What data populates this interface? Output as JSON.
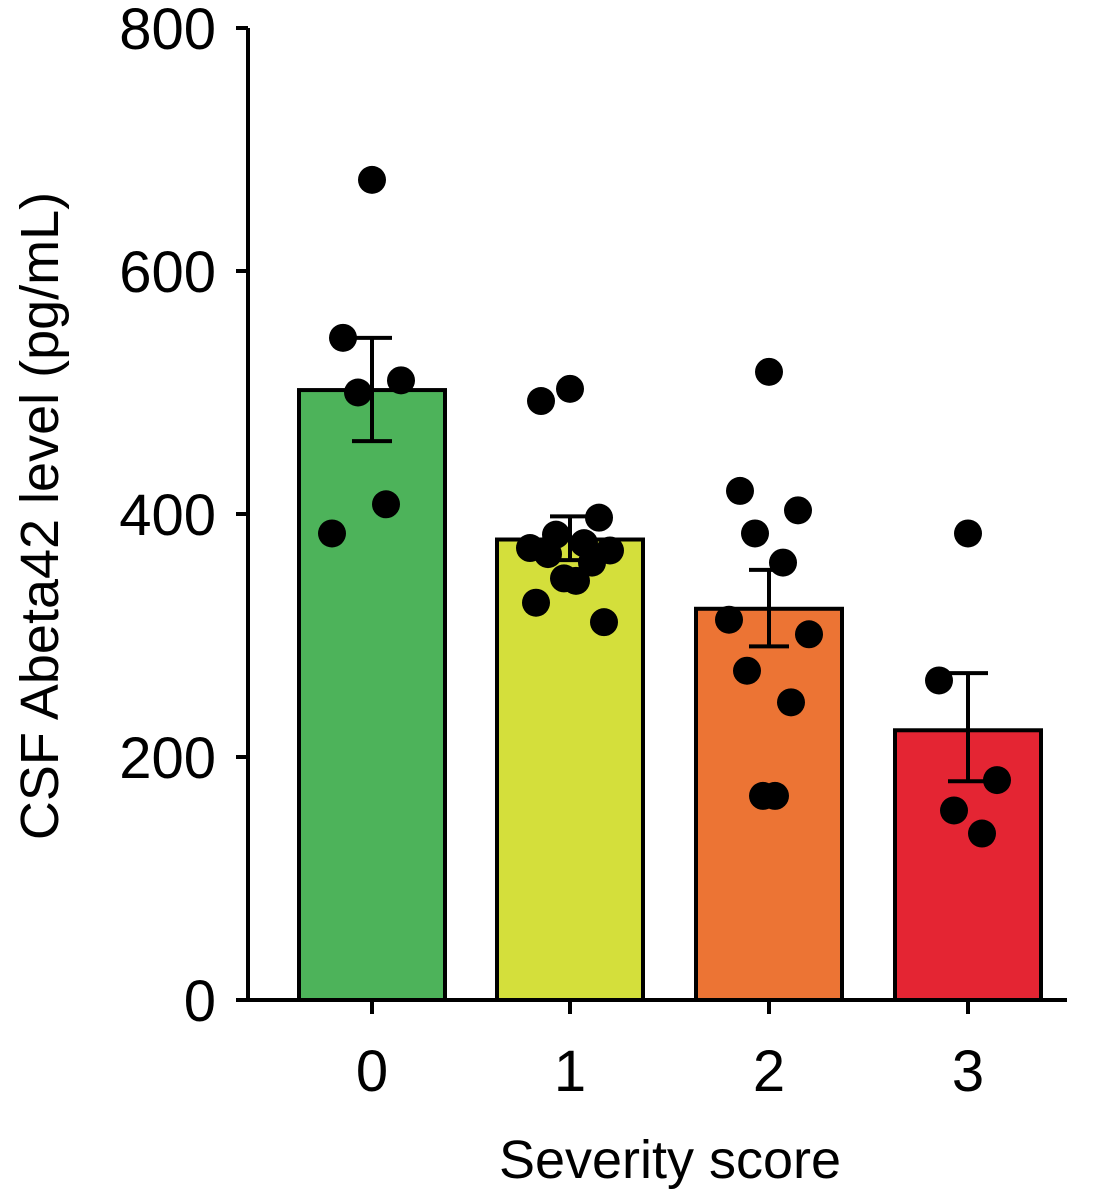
{
  "chart_data": {
    "type": "bar",
    "title": "",
    "xlabel": "Severity score",
    "ylabel": "CSF Abeta42 level (pg/mL)",
    "categories": [
      "0",
      "1",
      "2",
      "3"
    ],
    "values": [
      502,
      379,
      322,
      222
    ],
    "error": {
      "type": "sem",
      "upper": [
        545,
        398,
        354,
        269
      ],
      "lower": [
        460,
        362,
        291,
        180
      ]
    },
    "points": [
      [
        675,
        545,
        510,
        500,
        408,
        384
      ],
      [
        503,
        493,
        397,
        383,
        376,
        372,
        370,
        367,
        360,
        347,
        345,
        327,
        311
      ],
      [
        517,
        419,
        403,
        384,
        360,
        313,
        301,
        271,
        245,
        168,
        168
      ],
      [
        384,
        263,
        181,
        156,
        137
      ]
    ],
    "bar_colors": [
      "#4db35a",
      "#d4df3b",
      "#ec7434",
      "#e42533"
    ],
    "point_color": "#000000",
    "ylim": [
      0,
      800
    ],
    "yticks": [
      "0",
      "200",
      "400",
      "600",
      "800"
    ],
    "grid": false,
    "legend": false
  }
}
